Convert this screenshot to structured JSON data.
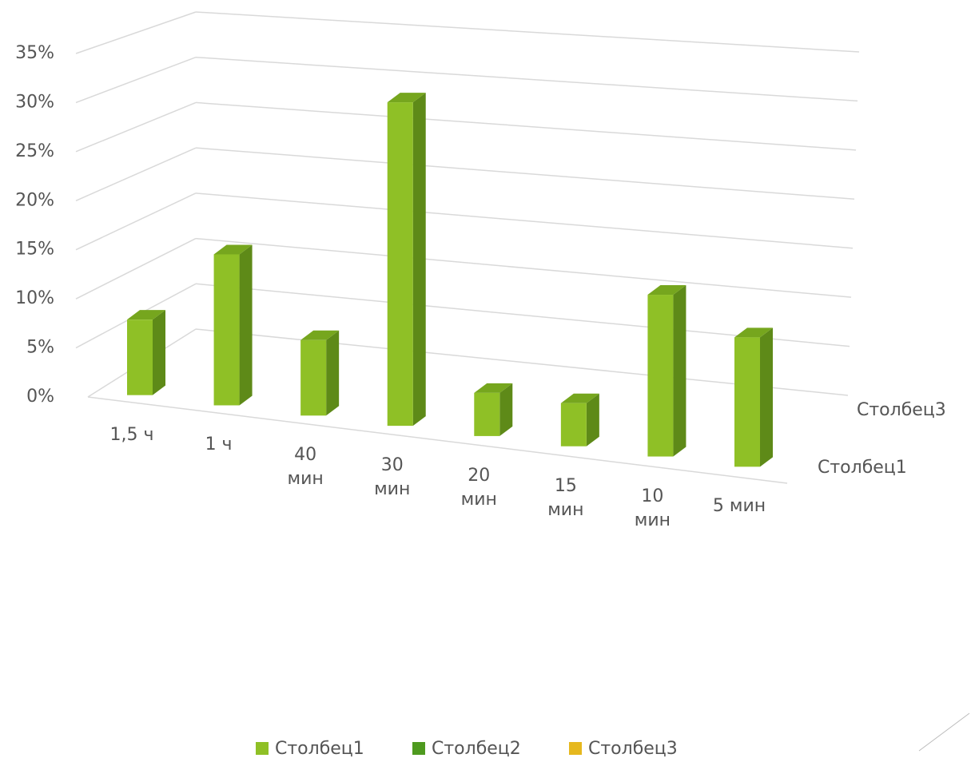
{
  "chart_data": {
    "type": "bar3d",
    "categories": [
      "1,5 ч",
      "1 ч",
      "40 мин",
      "30 мин",
      "20 мин",
      "15 мин",
      "10 мин",
      "5 мин"
    ],
    "series": [
      {
        "name": "Столбец1",
        "color": "#8fc026",
        "values": [
          7,
          14,
          7,
          30,
          4,
          4,
          15,
          12
        ]
      },
      {
        "name": "Столбец2",
        "color": "#4e9a1f",
        "values": [
          null,
          null,
          null,
          null,
          null,
          null,
          null,
          null
        ]
      },
      {
        "name": "Столбец3",
        "color": "#e6b81e",
        "values": [
          null,
          null,
          null,
          null,
          null,
          null,
          null,
          null
        ]
      }
    ],
    "ylim": [
      0,
      35
    ],
    "yticks": [
      {
        "value": 0,
        "label": "0%"
      },
      {
        "value": 5,
        "label": "5%"
      },
      {
        "value": 10,
        "label": "10%"
      },
      {
        "value": 15,
        "label": "15%"
      },
      {
        "value": 20,
        "label": "20%"
      },
      {
        "value": 25,
        "label": "25%"
      },
      {
        "value": 30,
        "label": "30%"
      },
      {
        "value": 35,
        "label": "35%"
      }
    ],
    "grid": true
  }
}
